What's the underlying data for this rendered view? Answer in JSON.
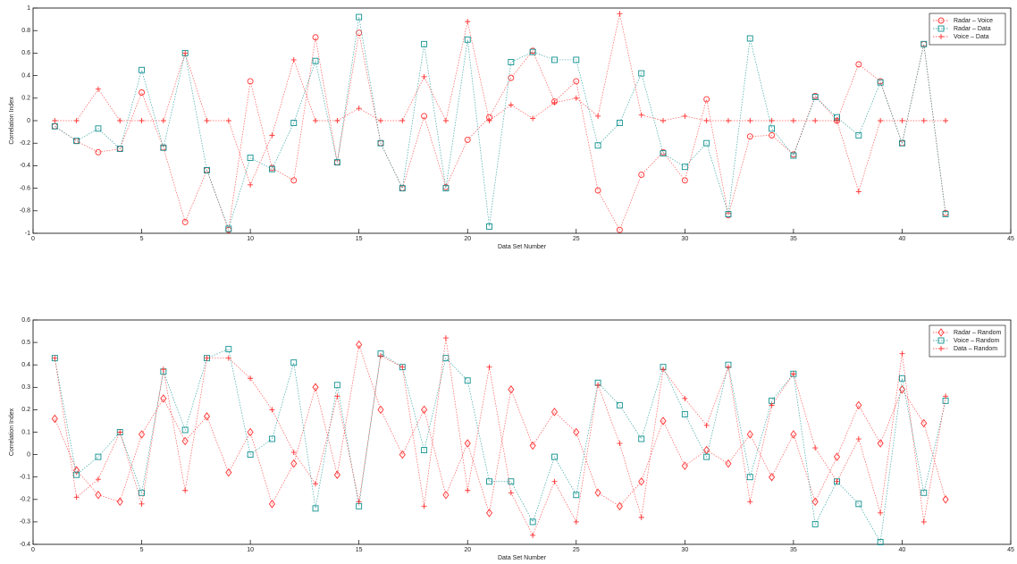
{
  "chart_data": [
    {
      "type": "line",
      "xlabel": "Data Set Number",
      "ylabel": "Correlation Index",
      "x": [
        1,
        2,
        3,
        4,
        5,
        6,
        7,
        8,
        9,
        10,
        11,
        12,
        13,
        14,
        15,
        16,
        17,
        18,
        19,
        20,
        21,
        22,
        23,
        24,
        25,
        26,
        27,
        28,
        29,
        30,
        31,
        32,
        33,
        34,
        35,
        36,
        37,
        38,
        39,
        40,
        41,
        42
      ],
      "xlim": [
        0,
        45
      ],
      "xticks": [
        0,
        5,
        10,
        15,
        20,
        25,
        30,
        35,
        40,
        45
      ],
      "ylim": [
        -1,
        1
      ],
      "yticks": [
        -1,
        -0.8,
        -0.6,
        -0.4,
        -0.2,
        0,
        0.2,
        0.4,
        0.6,
        0.8,
        1
      ],
      "legend": "upper right",
      "series": [
        {
          "name": "Radar – Voice",
          "color": "#ff3030",
          "marker": "circle",
          "values": [
            -0.05,
            -0.18,
            -0.28,
            -0.25,
            0.25,
            -0.24,
            -0.9,
            -0.44,
            -0.97,
            0.35,
            -0.42,
            -0.53,
            0.74,
            -0.37,
            0.78,
            -0.2,
            -0.6,
            0.04,
            -0.59,
            -0.17,
            0.03,
            0.38,
            0.62,
            0.17,
            0.35,
            -0.62,
            -0.97,
            -0.48,
            -0.28,
            -0.53,
            0.19,
            -0.84,
            -0.14,
            -0.13,
            -0.3,
            0.22,
            0,
            0.5,
            0.35,
            -0.2,
            0.68,
            -0.82
          ]
        },
        {
          "name": "Radar – Data",
          "color": "#109090",
          "marker": "square",
          "values": [
            -0.05,
            -0.18,
            -0.07,
            -0.25,
            0.45,
            -0.24,
            0.6,
            -0.44,
            -0.96,
            -0.33,
            -0.43,
            -0.02,
            0.53,
            -0.37,
            0.92,
            -0.2,
            -0.6,
            0.68,
            -0.6,
            0.72,
            -0.94,
            0.52,
            0.61,
            0.54,
            0.54,
            -0.22,
            -0.02,
            0.42,
            -0.29,
            -0.41,
            -0.2,
            -0.83,
            0.73,
            -0.07,
            -0.31,
            0.21,
            0.03,
            -0.13,
            0.34,
            -0.2,
            0.68,
            -0.83
          ]
        },
        {
          "name": "Voice – Data",
          "color": "#ff3030",
          "marker": "plus",
          "values": [
            0,
            0,
            0.28,
            0,
            0,
            0,
            0.6,
            0,
            0,
            -0.57,
            -0.13,
            0.54,
            0,
            0,
            0.11,
            0,
            0,
            0.39,
            0,
            0.88,
            0,
            0.14,
            0.02,
            0.16,
            0.2,
            0.04,
            0.95,
            0.05,
            0,
            0.04,
            0,
            0,
            0,
            0,
            0,
            0,
            0,
            -0.63,
            0,
            0,
            0,
            0
          ]
        }
      ]
    },
    {
      "type": "line",
      "xlabel": "Data Set Number",
      "ylabel": "Correlation Index",
      "x": [
        1,
        2,
        3,
        4,
        5,
        6,
        7,
        8,
        9,
        10,
        11,
        12,
        13,
        14,
        15,
        16,
        17,
        18,
        19,
        20,
        21,
        22,
        23,
        24,
        25,
        26,
        27,
        28,
        29,
        30,
        31,
        32,
        33,
        34,
        35,
        36,
        37,
        38,
        39,
        40,
        41,
        42
      ],
      "xlim": [
        0,
        45
      ],
      "xticks": [
        0,
        5,
        10,
        15,
        20,
        25,
        30,
        35,
        40,
        45
      ],
      "ylim": [
        -0.4,
        0.6
      ],
      "yticks": [
        -0.4,
        -0.3,
        -0.2,
        -0.1,
        0,
        0.1,
        0.2,
        0.3,
        0.4,
        0.5,
        0.6
      ],
      "legend": "upper right",
      "series": [
        {
          "name": "Radar – Random",
          "color": "#ff3030",
          "marker": "diamond",
          "values": [
            0.16,
            -0.07,
            -0.18,
            -0.21,
            0.09,
            0.25,
            0.06,
            0.17,
            -0.08,
            0.1,
            -0.22,
            -0.04,
            0.3,
            -0.09,
            0.49,
            0.2,
            0,
            0.2,
            -0.18,
            0.05,
            -0.26,
            0.29,
            0.04,
            0.19,
            0.1,
            -0.17,
            -0.23,
            -0.12,
            0.15,
            -0.05,
            0.02,
            -0.04,
            0.09,
            -0.1,
            0.09,
            -0.21,
            -0.01,
            0.22,
            0.05,
            0.29,
            0.14,
            -0.2
          ]
        },
        {
          "name": "Voice – Random",
          "color": "#109090",
          "marker": "square",
          "values": [
            0.43,
            -0.09,
            -0.01,
            0.1,
            -0.17,
            0.37,
            0.11,
            0.43,
            0.47,
            0,
            0.07,
            0.41,
            -0.24,
            0.31,
            -0.23,
            0.45,
            0.39,
            0.02,
            0.43,
            0.33,
            -0.12,
            -0.12,
            -0.3,
            -0.01,
            -0.18,
            0.32,
            0.22,
            0.07,
            0.39,
            0.18,
            -0.01,
            0.4,
            -0.1,
            0.24,
            0.36,
            -0.31,
            -0.12,
            -0.22,
            -0.39,
            0.34,
            -0.17,
            0.24
          ]
        },
        {
          "name": "Data – Random",
          "color": "#ff3030",
          "marker": "plus",
          "values": [
            0.43,
            -0.19,
            -0.11,
            0.1,
            -0.22,
            0.38,
            -0.16,
            0.43,
            0.43,
            0.34,
            0.2,
            0.01,
            -0.13,
            0.26,
            -0.21,
            0.44,
            0.39,
            -0.23,
            0.52,
            -0.16,
            0.39,
            -0.17,
            -0.36,
            -0.12,
            -0.3,
            0.31,
            0.05,
            -0.28,
            0.38,
            0.25,
            0.13,
            0.39,
            -0.21,
            0.22,
            0.36,
            0.03,
            -0.12,
            0.07,
            -0.26,
            0.45,
            -0.3,
            0.26
          ]
        }
      ]
    }
  ]
}
